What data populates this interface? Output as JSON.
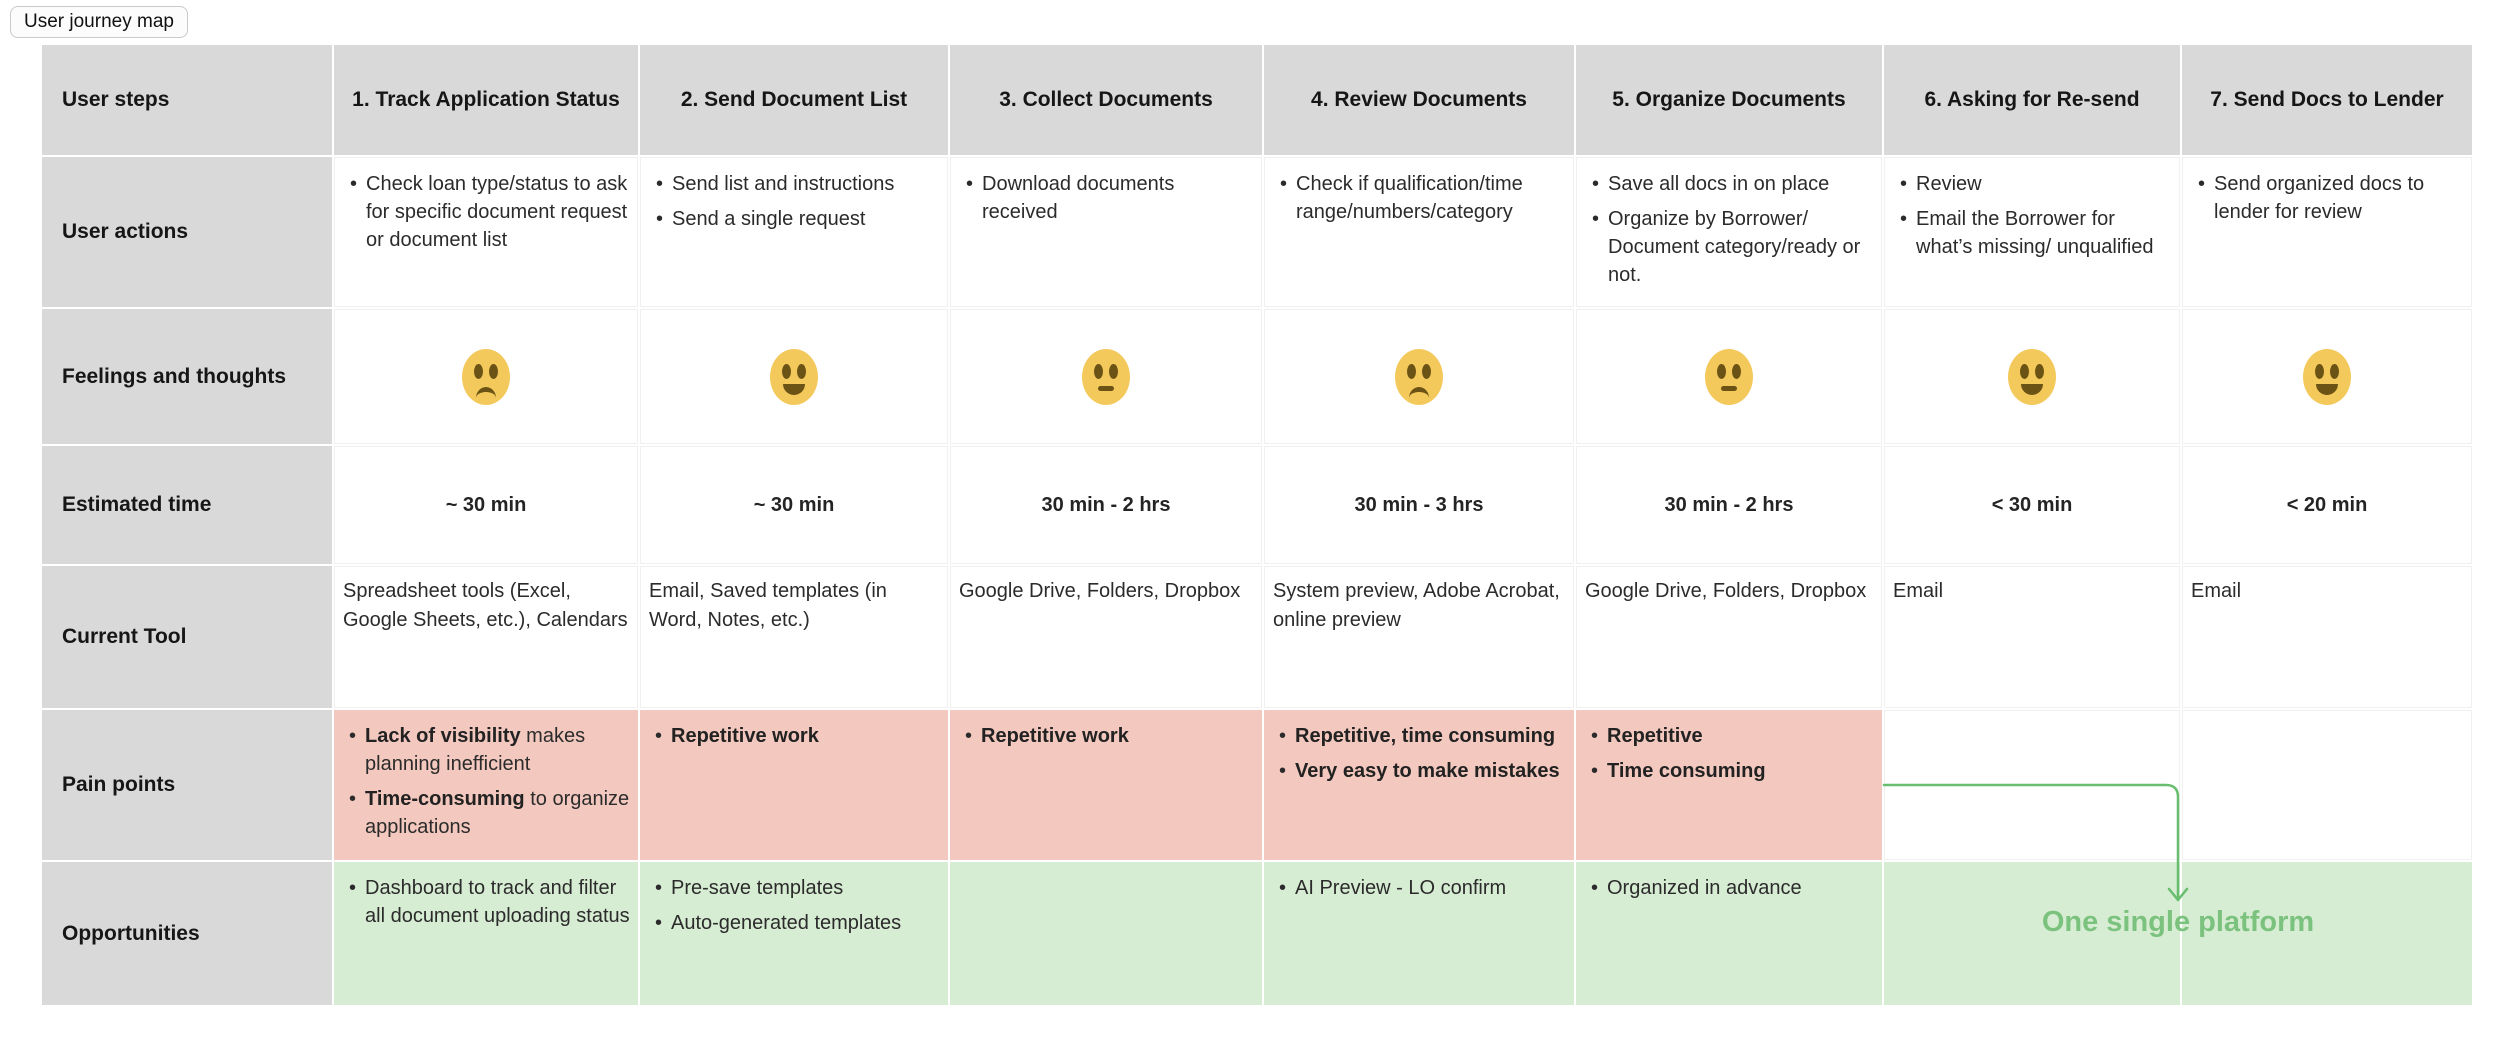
{
  "page": {
    "label": "User journey map"
  },
  "colors": {
    "header_gray": "#d9d9d9",
    "pain_pink": "#f3c8be",
    "opportunity_green": "#d7edd3",
    "accent_green_line": "#68bd6e",
    "accent_green_text": "#7bc27e",
    "emoji_yellow": "#f4c95c"
  },
  "table": {
    "row_headers": [
      "User steps",
      "User actions",
      "Feelings and thoughts",
      "Estimated time",
      "Current Tool",
      "Pain points",
      "Opportunities"
    ],
    "columns": [
      "1. Track Application Status",
      "2. Send Document List",
      "3. Collect Documents",
      "4. Review Documents",
      "5. Organize Documents",
      "6. Asking for Re-send",
      "7. Send Docs to Lender"
    ],
    "user_actions": [
      [
        "Check loan type/status to ask for specific document request or document list"
      ],
      [
        "Send list and instructions",
        "Send a single request"
      ],
      [
        "Download documents received"
      ],
      [
        "Check if qualification/time range/numbers/category"
      ],
      [
        "Save all docs in on place",
        "Organize by Borrower/ Document category/ready or not."
      ],
      [
        "Review",
        "Email the Borrower for what’s missing/ unqualified"
      ],
      [
        "Send organized docs to lender for review"
      ]
    ],
    "feelings": [
      "sad",
      "smile",
      "neutral",
      "sad",
      "neutral",
      "smile",
      "smile"
    ],
    "estimated_time": [
      "~ 30 min",
      "~ 30 min",
      "30 min - 2 hrs",
      "30 min - 3 hrs",
      "30 min - 2 hrs",
      "< 30 min",
      "< 20 min"
    ],
    "current_tool": [
      "Spreadsheet tools (Excel, Google Sheets, etc.), Calendars",
      "Email, Saved templates (in Word, Notes, etc.)",
      "Google Drive, Folders, Dropbox",
      "System preview, Adobe Acrobat, online preview",
      "Google Drive, Folders, Dropbox",
      "Email",
      "Email"
    ],
    "pain_points": [
      [
        [
          {
            "t": "Lack of visibility",
            "b": true
          },
          {
            "t": " makes planning inefficient",
            "b": false
          }
        ],
        [
          {
            "t": "Time-consuming",
            "b": true
          },
          {
            "t": " to organize applications",
            "b": false
          }
        ]
      ],
      [
        [
          {
            "t": "Repetitive work",
            "b": true
          }
        ]
      ],
      [
        [
          {
            "t": "Repetitive work",
            "b": true
          }
        ]
      ],
      [
        [
          {
            "t": "Repetitive, time consuming",
            "b": true
          }
        ],
        [
          {
            "t": "Very easy to make mistakes",
            "b": true
          }
        ]
      ],
      [
        [
          {
            "t": "Repetitive",
            "b": true
          }
        ],
        [
          {
            "t": "Time consuming",
            "b": true
          }
        ]
      ],
      [],
      []
    ],
    "opportunities": [
      [
        "Dashboard to track and filter all document uploading status"
      ],
      [
        "Pre-save templates",
        "Auto-generated templates"
      ],
      [],
      [
        "AI Preview - LO confirm"
      ],
      [
        "Organized in advance"
      ],
      [],
      []
    ],
    "annotation": "One single platform"
  }
}
